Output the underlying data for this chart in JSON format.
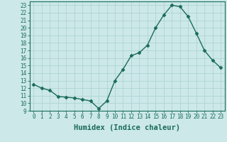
{
  "x": [
    0,
    1,
    2,
    3,
    4,
    5,
    6,
    7,
    8,
    9,
    10,
    11,
    12,
    13,
    14,
    15,
    16,
    17,
    18,
    19,
    20,
    21,
    22,
    23
  ],
  "y": [
    12.5,
    12.0,
    11.7,
    10.9,
    10.8,
    10.7,
    10.5,
    10.3,
    9.3,
    10.3,
    13.0,
    14.5,
    16.3,
    16.7,
    17.7,
    20.0,
    21.7,
    23.0,
    22.8,
    21.5,
    19.3,
    17.0,
    15.7,
    14.7
  ],
  "title": "",
  "xlabel": "Humidex (Indice chaleur)",
  "ylabel": "",
  "xlim": [
    -0.5,
    23.5
  ],
  "ylim": [
    9,
    23.5
  ],
  "yticks": [
    9,
    10,
    11,
    12,
    13,
    14,
    15,
    16,
    17,
    18,
    19,
    20,
    21,
    22,
    23
  ],
  "xticks": [
    0,
    1,
    2,
    3,
    4,
    5,
    6,
    7,
    8,
    9,
    10,
    11,
    12,
    13,
    14,
    15,
    16,
    17,
    18,
    19,
    20,
    21,
    22,
    23
  ],
  "line_color": "#1a6b5a",
  "marker_color": "#1a6b5a",
  "bg_color": "#cce8e8",
  "grid_color": "#aad0d0",
  "border_color": "#1a6b5a",
  "tick_label_fontsize": 5.5,
  "xlabel_fontsize": 7.5
}
